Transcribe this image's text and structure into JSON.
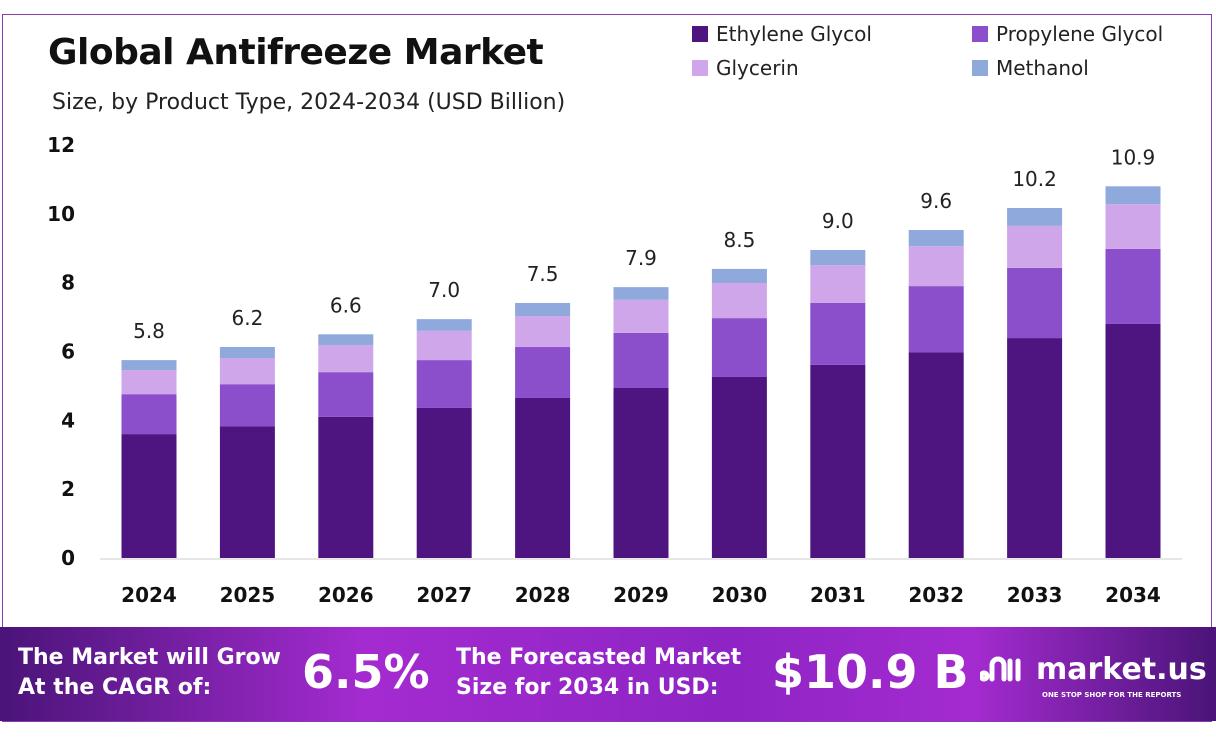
{
  "chart_data": {
    "type": "bar",
    "stacked": true,
    "title": "Global Antifreeze Market",
    "subtitle": "Size, by Product Type, 2024-2034 (USD Billion)",
    "categories": [
      "2024",
      "2025",
      "2026",
      "2027",
      "2028",
      "2029",
      "2030",
      "2031",
      "2032",
      "2033",
      "2034"
    ],
    "totals": [
      "5.8",
      "6.2",
      "6.6",
      "7.0",
      "7.5",
      "7.9",
      "8.5",
      "9.0",
      "9.6",
      "10.2",
      "10.9"
    ],
    "series": [
      {
        "name": "Ethylene Glycol",
        "color": "#4e1580",
        "values": [
          3.6,
          3.83,
          4.1,
          4.36,
          4.65,
          4.94,
          5.26,
          5.61,
          5.98,
          6.39,
          6.8
        ]
      },
      {
        "name": "Propylene Glycol",
        "color": "#8b4fcb",
        "values": [
          1.16,
          1.22,
          1.3,
          1.39,
          1.48,
          1.6,
          1.71,
          1.8,
          1.92,
          2.04,
          2.18
        ]
      },
      {
        "name": "Glycerin",
        "color": "#d0a6ea",
        "values": [
          0.7,
          0.76,
          0.79,
          0.85,
          0.9,
          0.96,
          1.02,
          1.1,
          1.16,
          1.22,
          1.3
        ]
      },
      {
        "name": "Methanol",
        "color": "#8fa9dd",
        "values": [
          0.29,
          0.32,
          0.31,
          0.34,
          0.38,
          0.37,
          0.41,
          0.44,
          0.47,
          0.52,
          0.52
        ]
      }
    ],
    "yticks": [
      "0",
      "2",
      "4",
      "6",
      "8",
      "10",
      "12"
    ],
    "ylim": [
      0,
      12
    ],
    "grid": false,
    "legend_position": "top-right"
  },
  "banner": {
    "cagr_label_1": "The Market will Grow",
    "cagr_label_2": "At the CAGR of:",
    "cagr_value": "6.5%",
    "forecast_label_1": "The Forecasted Market",
    "forecast_label_2": "Size for 2034 in USD:",
    "forecast_value": "$10.9 B",
    "brand": "market.us",
    "brand_tagline": "ONE STOP SHOP FOR THE REPORTS"
  }
}
